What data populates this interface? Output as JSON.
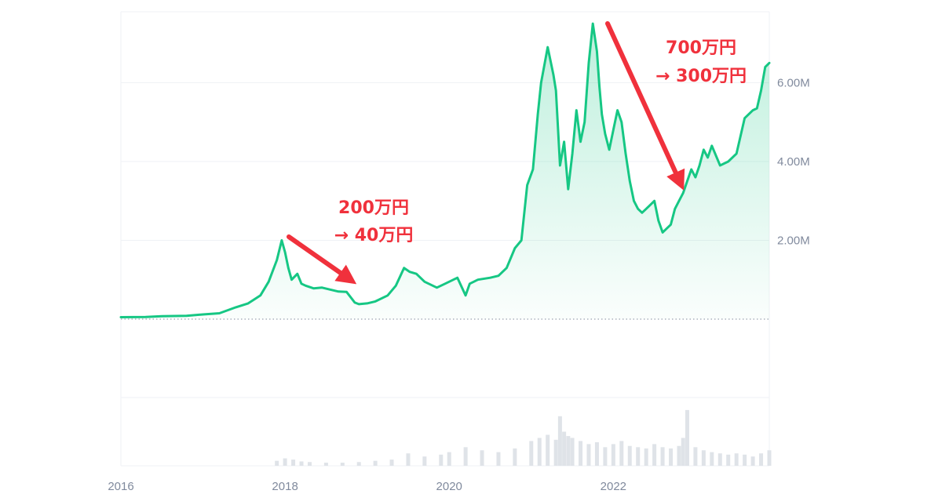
{
  "chart_data": {
    "type": "area",
    "title": "",
    "xlabel": "",
    "ylabel": "",
    "xlim": [
      2016.0,
      2023.9
    ],
    "ylim": [
      0,
      7800000
    ],
    "x_ticks": [
      {
        "value": 2016,
        "label": "2016"
      },
      {
        "value": 2018,
        "label": "2018"
      },
      {
        "value": 2020,
        "label": "2020"
      },
      {
        "value": 2022,
        "label": "2022"
      }
    ],
    "y_ticks": [
      {
        "value": 2000000,
        "label": "2.00M"
      },
      {
        "value": 4000000,
        "label": "4.00M"
      },
      {
        "value": 6000000,
        "label": "6.00M"
      }
    ],
    "baseline": 0,
    "grid": true,
    "line_color": "#16c784",
    "annotation_color": "#f0313c",
    "series": [
      {
        "x": [
          2016.0,
          2016.3,
          2016.5,
          2016.8,
          2017.0,
          2017.2,
          2017.4,
          2017.55,
          2017.7,
          2017.8,
          2017.9,
          2017.96,
          2018.0,
          2018.04,
          2018.08,
          2018.15,
          2018.2,
          2018.25,
          2018.35,
          2018.45,
          2018.55,
          2018.65,
          2018.75,
          2018.85,
          2018.9,
          2019.0,
          2019.1,
          2019.25,
          2019.35,
          2019.45,
          2019.52,
          2019.6,
          2019.7,
          2019.85,
          2019.95,
          2020.1,
          2020.2,
          2020.25,
          2020.35,
          2020.5,
          2020.6,
          2020.7,
          2020.8,
          2020.88,
          2020.95,
          2021.02,
          2021.08,
          2021.12,
          2021.2,
          2021.27,
          2021.3,
          2021.35,
          2021.4,
          2021.45,
          2021.5,
          2021.55,
          2021.6,
          2021.65,
          2021.7,
          2021.75,
          2021.8,
          2021.83,
          2021.86,
          2021.9,
          2021.95,
          2022.0,
          2022.05,
          2022.1,
          2022.15,
          2022.2,
          2022.25,
          2022.3,
          2022.35,
          2022.4,
          2022.45,
          2022.5,
          2022.55,
          2022.6,
          2022.65,
          2022.7,
          2022.75,
          2022.8,
          2022.85,
          2022.9,
          2022.95,
          2023.0,
          2023.05,
          2023.1,
          2023.15,
          2023.2,
          2023.3,
          2023.4,
          2023.5,
          2023.6,
          2023.7,
          2023.75,
          2023.8,
          2023.85,
          2023.9
        ],
        "values": [
          50000,
          55000,
          75000,
          85000,
          120000,
          150000,
          300000,
          400000,
          600000,
          950000,
          1500000,
          2000000,
          1700000,
          1300000,
          1000000,
          1150000,
          900000,
          850000,
          780000,
          800000,
          750000,
          700000,
          690000,
          420000,
          380000,
          400000,
          450000,
          600000,
          850000,
          1300000,
          1200000,
          1150000,
          950000,
          800000,
          900000,
          1050000,
          600000,
          900000,
          1000000,
          1050000,
          1100000,
          1300000,
          1800000,
          2000000,
          3400000,
          3800000,
          5200000,
          6000000,
          6900000,
          6200000,
          5800000,
          3900000,
          4500000,
          3300000,
          4200000,
          5300000,
          4500000,
          5000000,
          6500000,
          7500000,
          6800000,
          5900000,
          5200000,
          4700000,
          4300000,
          4800000,
          5300000,
          5000000,
          4200000,
          3500000,
          3000000,
          2800000,
          2700000,
          2800000,
          2900000,
          3000000,
          2500000,
          2200000,
          2300000,
          2400000,
          2800000,
          3000000,
          3200000,
          3500000,
          3800000,
          3600000,
          3900000,
          4300000,
          4100000,
          4400000,
          3900000,
          4000000,
          4200000,
          5100000,
          5300000,
          5350000,
          5800000,
          6400000,
          6500000
        ]
      }
    ],
    "volume": {
      "x": [
        2017.9,
        2018.0,
        2018.1,
        2018.2,
        2018.3,
        2018.5,
        2018.7,
        2018.9,
        2019.1,
        2019.3,
        2019.5,
        2019.7,
        2019.9,
        2020.0,
        2020.2,
        2020.4,
        2020.6,
        2020.8,
        2021.0,
        2021.1,
        2021.2,
        2021.3,
        2021.35,
        2021.4,
        2021.45,
        2021.5,
        2021.6,
        2021.7,
        2021.8,
        2021.9,
        2022.0,
        2022.1,
        2022.2,
        2022.3,
        2022.4,
        2022.5,
        2022.6,
        2022.7,
        2022.8,
        2022.85,
        2022.9,
        2023.0,
        2023.1,
        2023.2,
        2023.3,
        2023.4,
        2023.5,
        2023.6,
        2023.7,
        2023.8,
        2023.9
      ],
      "values": [
        0.08,
        0.12,
        0.1,
        0.07,
        0.06,
        0.05,
        0.05,
        0.06,
        0.08,
        0.1,
        0.2,
        0.15,
        0.18,
        0.22,
        0.3,
        0.25,
        0.22,
        0.28,
        0.4,
        0.45,
        0.5,
        0.42,
        0.8,
        0.55,
        0.48,
        0.45,
        0.4,
        0.35,
        0.38,
        0.3,
        0.35,
        0.4,
        0.32,
        0.3,
        0.28,
        0.35,
        0.3,
        0.28,
        0.32,
        0.45,
        0.9,
        0.3,
        0.25,
        0.22,
        0.2,
        0.18,
        0.2,
        0.18,
        0.15,
        0.2,
        0.25
      ]
    }
  },
  "annotations": [
    {
      "line1": "200万円",
      "line2": "→ 40万円"
    },
    {
      "line1": "700万円",
      "line2": "→ 300万円"
    }
  ]
}
